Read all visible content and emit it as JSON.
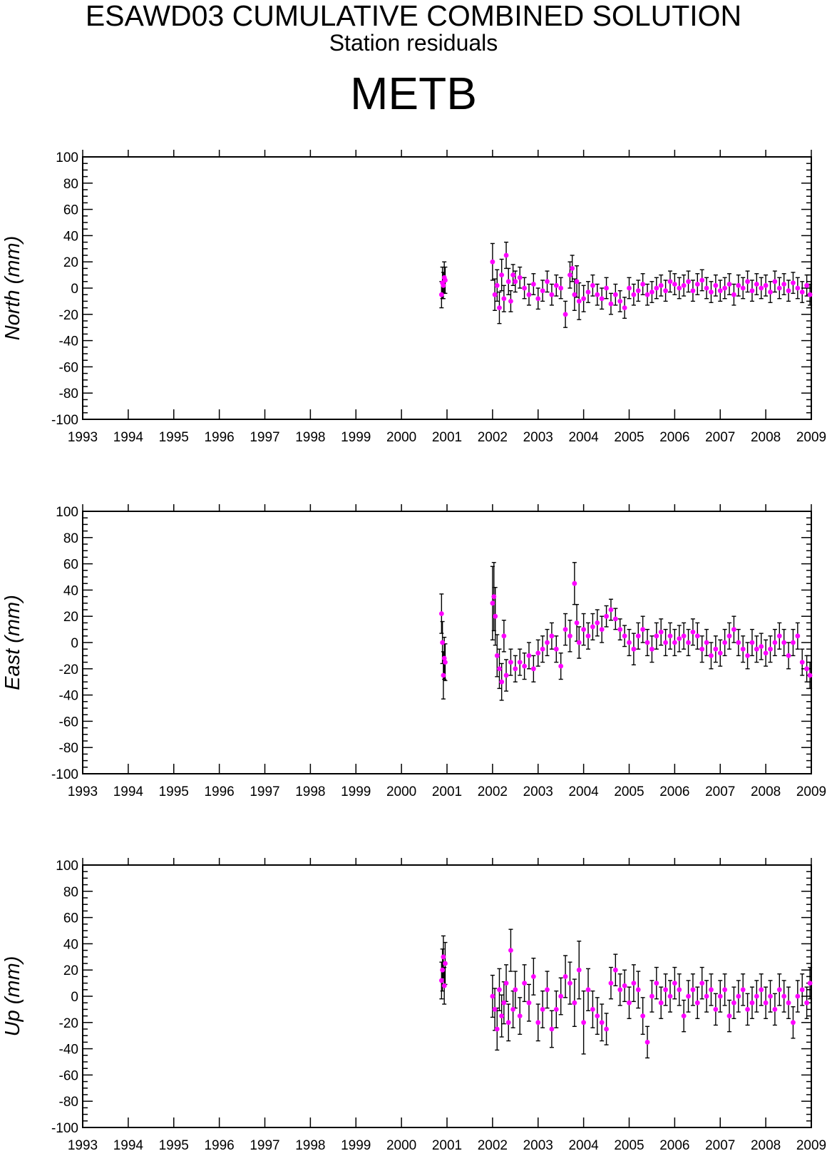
{
  "header": {
    "title": "ESAWD03 CUMULATIVE COMBINED SOLUTION",
    "subtitle": "Station residuals",
    "station": "METB"
  },
  "colors": {
    "point": "#ff00ff",
    "error_bar": "#000000",
    "axis": "#000000"
  },
  "chart_data": [
    {
      "type": "scatter",
      "title": "",
      "xlabel": "",
      "ylabel": "North (mm)",
      "xlim": [
        1993,
        2009
      ],
      "ylim": [
        -100,
        100
      ],
      "x_ticks": [
        "1993",
        "1994",
        "1995",
        "1996",
        "1997",
        "1998",
        "1999",
        "2000",
        "2001",
        "2002",
        "2003",
        "2004",
        "2005",
        "2006",
        "2007",
        "2008",
        "2009"
      ],
      "y_ticks": [
        "100",
        "80",
        "60",
        "40",
        "20",
        "0",
        "-20",
        "-40",
        "-60",
        "-80",
        "-100"
      ],
      "error_bars": true,
      "series": [
        {
          "x": [
            2000.88,
            2000.9,
            2000.92,
            2000.94,
            2000.96,
            2002.0,
            2002.05,
            2002.1,
            2002.15,
            2002.2,
            2002.25,
            2002.3,
            2002.35,
            2002.4,
            2002.45,
            2002.5,
            2002.6,
            2002.7,
            2002.8,
            2002.9,
            2003.0,
            2003.1,
            2003.2,
            2003.3,
            2003.4,
            2003.5,
            2003.6,
            2003.7,
            2003.75,
            2003.8,
            2003.85,
            2003.9,
            2004.0,
            2004.1,
            2004.2,
            2004.3,
            2004.4,
            2004.5,
            2004.6,
            2004.7,
            2004.8,
            2004.9,
            2005.0,
            2005.1,
            2005.2,
            2005.3,
            2005.4,
            2005.5,
            2005.6,
            2005.7,
            2005.8,
            2005.9,
            2006.0,
            2006.1,
            2006.2,
            2006.3,
            2006.4,
            2006.5,
            2006.6,
            2006.7,
            2006.8,
            2006.9,
            2007.0,
            2007.1,
            2007.2,
            2007.3,
            2007.4,
            2007.5,
            2007.6,
            2007.7,
            2007.8,
            2007.9,
            2008.0,
            2008.1,
            2008.2,
            2008.3,
            2008.4,
            2008.5,
            2008.6,
            2008.7,
            2008.8,
            2008.9,
            2008.97
          ],
          "y": [
            -5,
            4,
            2,
            8,
            6,
            20,
            -5,
            2,
            -15,
            10,
            -8,
            25,
            5,
            -10,
            10,
            5,
            8,
            0,
            -5,
            3,
            -8,
            -2,
            5,
            -5,
            2,
            0,
            -20,
            10,
            15,
            -5,
            5,
            -10,
            -8,
            -3,
            2,
            -5,
            -8,
            0,
            -12,
            -5,
            -10,
            -15,
            0,
            -5,
            -2,
            3,
            -5,
            -3,
            0,
            2,
            -2,
            5,
            3,
            0,
            2,
            5,
            -2,
            3,
            6,
            0,
            -3,
            2,
            -2,
            0,
            3,
            -5,
            2,
            0,
            5,
            -2,
            3,
            0,
            2,
            -3,
            5,
            0,
            3,
            -2,
            4,
            0,
            -3,
            2,
            -5
          ],
          "err": [
            10,
            12,
            10,
            12,
            10,
            14,
            12,
            12,
            12,
            12,
            10,
            10,
            10,
            8,
            8,
            8,
            8,
            8,
            8,
            8,
            8,
            8,
            8,
            8,
            8,
            8,
            10,
            10,
            10,
            12,
            12,
            14,
            10,
            8,
            8,
            8,
            8,
            8,
            8,
            8,
            8,
            8,
            8,
            8,
            8,
            8,
            8,
            8,
            8,
            8,
            8,
            8,
            8,
            8,
            8,
            8,
            8,
            8,
            8,
            8,
            8,
            8,
            8,
            8,
            8,
            8,
            8,
            8,
            8,
            8,
            8,
            8,
            8,
            8,
            8,
            8,
            8,
            8,
            8,
            8,
            8,
            8,
            8
          ]
        }
      ]
    },
    {
      "type": "scatter",
      "title": "",
      "xlabel": "",
      "ylabel": "East (mm)",
      "xlim": [
        1993,
        2009
      ],
      "ylim": [
        -100,
        100
      ],
      "x_ticks": [
        "1993",
        "1994",
        "1995",
        "1996",
        "1997",
        "1998",
        "1999",
        "2000",
        "2001",
        "2002",
        "2003",
        "2004",
        "2005",
        "2006",
        "2007",
        "2008",
        "2009"
      ],
      "y_ticks": [
        "100",
        "80",
        "60",
        "40",
        "20",
        "0",
        "-20",
        "-40",
        "-60",
        "-80",
        "-100"
      ],
      "error_bars": true,
      "series": [
        {
          "x": [
            2000.88,
            2000.9,
            2000.92,
            2000.94,
            2000.96,
            2002.0,
            2002.03,
            2002.06,
            2002.1,
            2002.15,
            2002.2,
            2002.25,
            2002.3,
            2002.4,
            2002.5,
            2002.6,
            2002.7,
            2002.8,
            2002.9,
            2003.0,
            2003.1,
            2003.2,
            2003.3,
            2003.4,
            2003.5,
            2003.6,
            2003.7,
            2003.8,
            2003.85,
            2003.9,
            2004.0,
            2004.1,
            2004.2,
            2004.3,
            2004.4,
            2004.5,
            2004.6,
            2004.7,
            2004.8,
            2004.9,
            2005.0,
            2005.1,
            2005.2,
            2005.3,
            2005.4,
            2005.5,
            2005.6,
            2005.7,
            2005.8,
            2005.9,
            2006.0,
            2006.1,
            2006.2,
            2006.3,
            2006.4,
            2006.5,
            2006.6,
            2006.7,
            2006.8,
            2006.9,
            2007.0,
            2007.1,
            2007.2,
            2007.3,
            2007.4,
            2007.5,
            2007.6,
            2007.7,
            2007.8,
            2007.9,
            2008.0,
            2008.1,
            2008.2,
            2008.3,
            2008.4,
            2008.5,
            2008.6,
            2008.7,
            2008.8,
            2008.9,
            2008.97
          ],
          "y": [
            22,
            0,
            -25,
            -12,
            -15,
            30,
            35,
            20,
            -10,
            -20,
            -30,
            5,
            -25,
            -15,
            -20,
            -15,
            -18,
            -10,
            -20,
            -8,
            -5,
            0,
            5,
            -5,
            -18,
            10,
            5,
            45,
            15,
            0,
            10,
            5,
            12,
            15,
            10,
            20,
            25,
            18,
            10,
            5,
            0,
            -5,
            5,
            10,
            0,
            -5,
            5,
            8,
            0,
            5,
            0,
            3,
            5,
            0,
            8,
            5,
            -5,
            0,
            -10,
            -5,
            -8,
            0,
            5,
            10,
            0,
            -5,
            -10,
            0,
            -5,
            -3,
            -8,
            -5,
            0,
            5,
            0,
            -10,
            0,
            5,
            -15,
            -20,
            -25
          ],
          "err": [
            15,
            16,
            18,
            16,
            14,
            28,
            26,
            22,
            16,
            15,
            14,
            12,
            12,
            10,
            10,
            10,
            10,
            10,
            10,
            10,
            10,
            10,
            10,
            10,
            10,
            12,
            12,
            16,
            14,
            12,
            12,
            10,
            10,
            10,
            10,
            8,
            8,
            8,
            8,
            8,
            10,
            12,
            10,
            10,
            10,
            10,
            10,
            10,
            10,
            10,
            10,
            10,
            10,
            10,
            10,
            10,
            10,
            10,
            10,
            10,
            10,
            10,
            10,
            10,
            10,
            10,
            10,
            10,
            10,
            10,
            10,
            10,
            10,
            10,
            10,
            10,
            10,
            10,
            10,
            10,
            10
          ]
        }
      ]
    },
    {
      "type": "scatter",
      "title": "",
      "xlabel": "",
      "ylabel": "Up (mm)",
      "xlim": [
        1993,
        2009
      ],
      "ylim": [
        -100,
        100
      ],
      "x_ticks": [
        "1993",
        "1994",
        "1995",
        "1996",
        "1997",
        "1998",
        "1999",
        "2000",
        "2001",
        "2002",
        "2003",
        "2004",
        "2005",
        "2006",
        "2007",
        "2008",
        "2009"
      ],
      "y_ticks": [
        "100",
        "80",
        "60",
        "40",
        "20",
        "0",
        "-20",
        "-40",
        "-60",
        "-80",
        "-100"
      ],
      "error_bars": true,
      "series": [
        {
          "x": [
            2000.88,
            2000.9,
            2000.92,
            2000.94,
            2000.96,
            2002.0,
            2002.05,
            2002.1,
            2002.15,
            2002.2,
            2002.25,
            2002.3,
            2002.35,
            2002.4,
            2002.45,
            2002.5,
            2002.6,
            2002.7,
            2002.8,
            2002.9,
            2003.0,
            2003.1,
            2003.2,
            2003.3,
            2003.4,
            2003.5,
            2003.6,
            2003.7,
            2003.8,
            2003.9,
            2004.0,
            2004.1,
            2004.2,
            2004.3,
            2004.4,
            2004.5,
            2004.6,
            2004.7,
            2004.8,
            2004.9,
            2005.0,
            2005.1,
            2005.2,
            2005.3,
            2005.4,
            2005.5,
            2005.6,
            2005.7,
            2005.8,
            2005.9,
            2006.0,
            2006.1,
            2006.2,
            2006.3,
            2006.4,
            2006.5,
            2006.6,
            2006.7,
            2006.8,
            2006.9,
            2007.0,
            2007.1,
            2007.2,
            2007.3,
            2007.4,
            2007.5,
            2007.6,
            2007.7,
            2007.8,
            2007.9,
            2008.0,
            2008.1,
            2008.2,
            2008.3,
            2008.4,
            2008.5,
            2008.6,
            2008.7,
            2008.8,
            2008.9,
            2008.97
          ],
          "y": [
            12,
            20,
            30,
            8,
            25,
            0,
            -10,
            -25,
            5,
            -15,
            -5,
            10,
            -20,
            35,
            -10,
            5,
            -15,
            10,
            -5,
            15,
            -20,
            -10,
            5,
            -25,
            -10,
            0,
            15,
            10,
            -5,
            20,
            -20,
            5,
            -10,
            -15,
            -20,
            -25,
            10,
            20,
            5,
            8,
            -5,
            10,
            5,
            -15,
            -35,
            0,
            10,
            -5,
            5,
            0,
            10,
            5,
            -15,
            0,
            5,
            -5,
            10,
            0,
            5,
            -10,
            0,
            5,
            -15,
            -5,
            0,
            5,
            -10,
            -5,
            0,
            5,
            -5,
            0,
            -10,
            5,
            0,
            -5,
            -20,
            0,
            5,
            -5,
            10
          ],
          "err": [
            14,
            16,
            16,
            14,
            16,
            16,
            16,
            16,
            16,
            16,
            16,
            14,
            14,
            16,
            14,
            14,
            14,
            14,
            14,
            14,
            14,
            14,
            14,
            14,
            14,
            14,
            16,
            16,
            18,
            22,
            24,
            16,
            14,
            14,
            14,
            12,
            12,
            12,
            12,
            12,
            12,
            14,
            14,
            14,
            12,
            12,
            12,
            12,
            12,
            12,
            12,
            12,
            12,
            12,
            12,
            12,
            12,
            12,
            12,
            12,
            12,
            12,
            12,
            12,
            12,
            12,
            12,
            12,
            12,
            12,
            12,
            12,
            12,
            12,
            12,
            12,
            12,
            12,
            12,
            12,
            12
          ]
        }
      ]
    }
  ]
}
